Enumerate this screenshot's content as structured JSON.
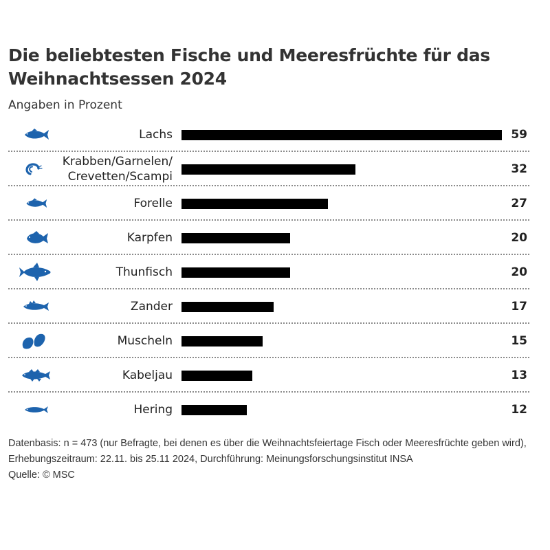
{
  "chart_data": {
    "type": "bar",
    "orientation": "horizontal",
    "title": "Die beliebtesten Fische und Meeresfrüchte für das Weihnachtsessen 2024",
    "subtitle": "Angaben in Prozent",
    "categories": [
      "Lachs",
      "Krabben/Garnelen/ Crevetten/Scampi",
      "Forelle",
      "Karpfen",
      "Thunfisch",
      "Zander",
      "Muscheln",
      "Kabeljau",
      "Hering"
    ],
    "icons": [
      "salmon-icon",
      "shrimp-icon",
      "trout-icon",
      "carp-icon",
      "tuna-icon",
      "zander-icon",
      "mussel-icon",
      "cod-icon",
      "herring-icon"
    ],
    "values": [
      59,
      32,
      27,
      20,
      20,
      17,
      15,
      13,
      12
    ],
    "xlim": [
      0,
      59
    ],
    "bar_color": "#000000",
    "icon_color": "#1d63ad"
  },
  "footnote": "Datenbasis: n = 473 (nur Befragte, bei denen es über die Weihnachtsfeiertage Fisch oder Meeresfrüchte geben wird), Erhebungszeitraum: 22.11. bis 25.11 2024, Durchführung: Meinungsforschungsinstitut INSA",
  "source": "Quelle: © MSC"
}
